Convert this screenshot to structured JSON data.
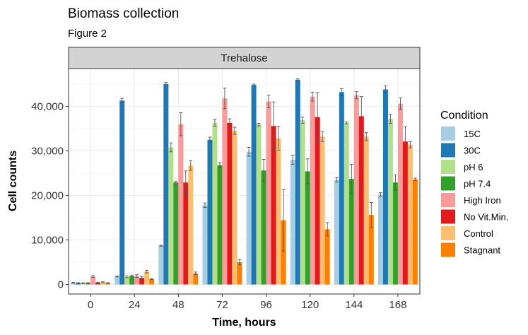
{
  "chart_data": {
    "type": "bar",
    "title": "Biomass collection",
    "subtitle": "Figure 2",
    "facet": "Trehalose",
    "xlabel": "Time, hours",
    "ylabel": "Cell counts",
    "ylim": [
      0,
      48000
    ],
    "yticks": [
      0,
      10000,
      20000,
      30000,
      40000
    ],
    "ytick_labels": [
      "0",
      "10,000",
      "20,000",
      "30,000",
      "40,000"
    ],
    "categories": [
      "0",
      "24",
      "48",
      "72",
      "96",
      "120",
      "144",
      "168"
    ],
    "legend_title": "Condition",
    "legend_position": "right",
    "grid": true,
    "series": [
      {
        "name": "15C",
        "color": "#A6CEE3",
        "values": [
          400,
          1800,
          8700,
          17800,
          29800,
          28000,
          23500,
          20200
        ],
        "errors": [
          100,
          100,
          100,
          500,
          1000,
          1000,
          500,
          400
        ]
      },
      {
        "name": "30C",
        "color": "#1F78B4",
        "values": [
          300,
          41300,
          45000,
          32500,
          44800,
          46000,
          43200,
          43800
        ],
        "errors": [
          100,
          500,
          400,
          600,
          200,
          200,
          800,
          800
        ]
      },
      {
        "name": "pH 6",
        "color": "#B2DF8A",
        "values": [
          300,
          1700,
          30800,
          36300,
          35900,
          36900,
          36300,
          37200
        ],
        "errors": [
          100,
          200,
          1000,
          800,
          300,
          700,
          200,
          1000
        ]
      },
      {
        "name": "pH 7.4",
        "color": "#33A02C",
        "values": [
          300,
          1900,
          22900,
          26800,
          25600,
          25400,
          23700,
          22900
        ],
        "errors": [
          100,
          200,
          300,
          600,
          2500,
          2800,
          3300,
          1700
        ]
      },
      {
        "name": "High Iron",
        "color": "#FB9A99",
        "values": [
          1800,
          1900,
          36000,
          41800,
          41100,
          42200,
          42500,
          40600
        ],
        "errors": [
          200,
          300,
          2600,
          2300,
          1400,
          1000,
          800,
          1300
        ]
      },
      {
        "name": "No Vit.Min.",
        "color": "#E31A1C",
        "values": [
          400,
          1500,
          22900,
          36300,
          35600,
          37600,
          37800,
          32100
        ],
        "errors": [
          100,
          300,
          2600,
          900,
          5400,
          5500,
          4400,
          3300
        ]
      },
      {
        "name": "Control",
        "color": "#FDBF6F",
        "values": [
          500,
          2900,
          26700,
          34500,
          32800,
          33200,
          33200,
          31400
        ],
        "errors": [
          100,
          300,
          1100,
          800,
          2700,
          1100,
          900,
          700
        ]
      },
      {
        "name": "Stagnant",
        "color": "#FF7F00",
        "values": [
          300,
          1200,
          2500,
          5000,
          14400,
          12400,
          15600,
          23600
        ],
        "errors": [
          100,
          100,
          300,
          600,
          6900,
          1500,
          2800,
          300
        ]
      }
    ]
  }
}
